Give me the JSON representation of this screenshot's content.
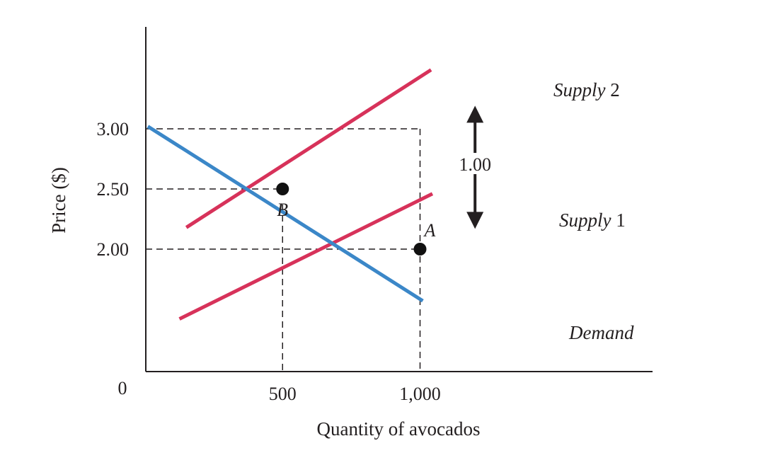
{
  "chart_data": {
    "type": "line",
    "xlabel": "Quantity of avocados",
    "ylabel": "Price ($)",
    "origin_label": "0",
    "xlim": [
      0,
      1850
    ],
    "ylim": [
      1.0,
      3.85
    ],
    "x_ticks": [
      {
        "value": 500,
        "label": "500"
      },
      {
        "value": 1000,
        "label": "1,000"
      }
    ],
    "y_ticks": [
      {
        "value": 2.0,
        "label": "2.00"
      },
      {
        "value": 2.5,
        "label": "2.50"
      },
      {
        "value": 3.0,
        "label": "3.00"
      }
    ],
    "series": [
      {
        "name": "Supply",
        "name_number": "2",
        "color": "#d7325a",
        "points": [
          [
            150,
            2.18
          ],
          [
            1040,
            3.49
          ]
        ]
      },
      {
        "name": "Supply",
        "name_number": "1",
        "color": "#d7325a",
        "points": [
          [
            125,
            1.42
          ],
          [
            1045,
            2.46
          ]
        ]
      },
      {
        "name": "Demand",
        "name_number": "",
        "color": "#3b87c8",
        "points": [
          [
            10,
            3.02
          ],
          [
            1010,
            1.57
          ]
        ]
      }
    ],
    "points": [
      {
        "label": "B",
        "x": 500,
        "y": 2.5
      },
      {
        "label": "A",
        "x": 1000,
        "y": 2.0
      }
    ],
    "shift": {
      "label": "1.00",
      "x": 1200,
      "y_from": 2.18,
      "y_to": 3.18
    },
    "grid": false,
    "colors": {
      "supply": "#d7325a",
      "demand": "#3b87c8",
      "axis": "#231f20"
    }
  }
}
